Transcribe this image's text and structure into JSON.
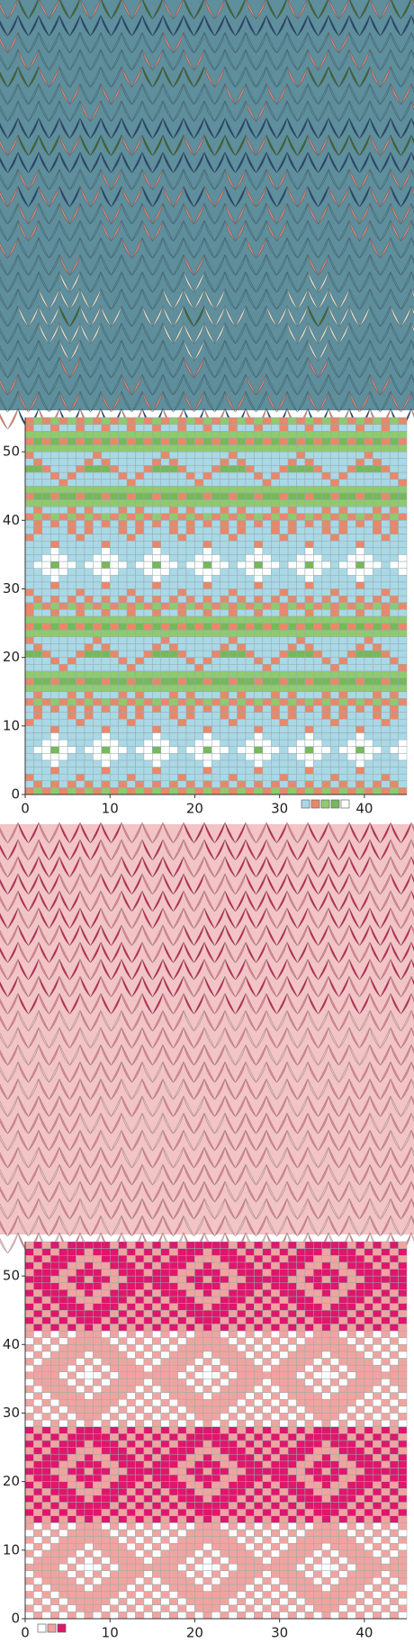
{
  "charts": [
    {
      "legend_colors": [
        "#a9d8e6",
        "#e8886a",
        "#8fca6e",
        "#76b85a",
        "#ffffff"
      ],
      "x_ticks": [
        0,
        10,
        20,
        30,
        40
      ],
      "y_ticks": [
        0,
        10,
        20,
        30,
        40,
        50
      ]
    },
    {
      "legend_colors": [
        "#ffffff",
        "#f0a4a0",
        "#e0156c"
      ],
      "x_ticks": [
        0,
        10,
        20,
        30,
        40
      ],
      "y_ticks": [
        0,
        10,
        20,
        30,
        40,
        50
      ]
    }
  ]
}
